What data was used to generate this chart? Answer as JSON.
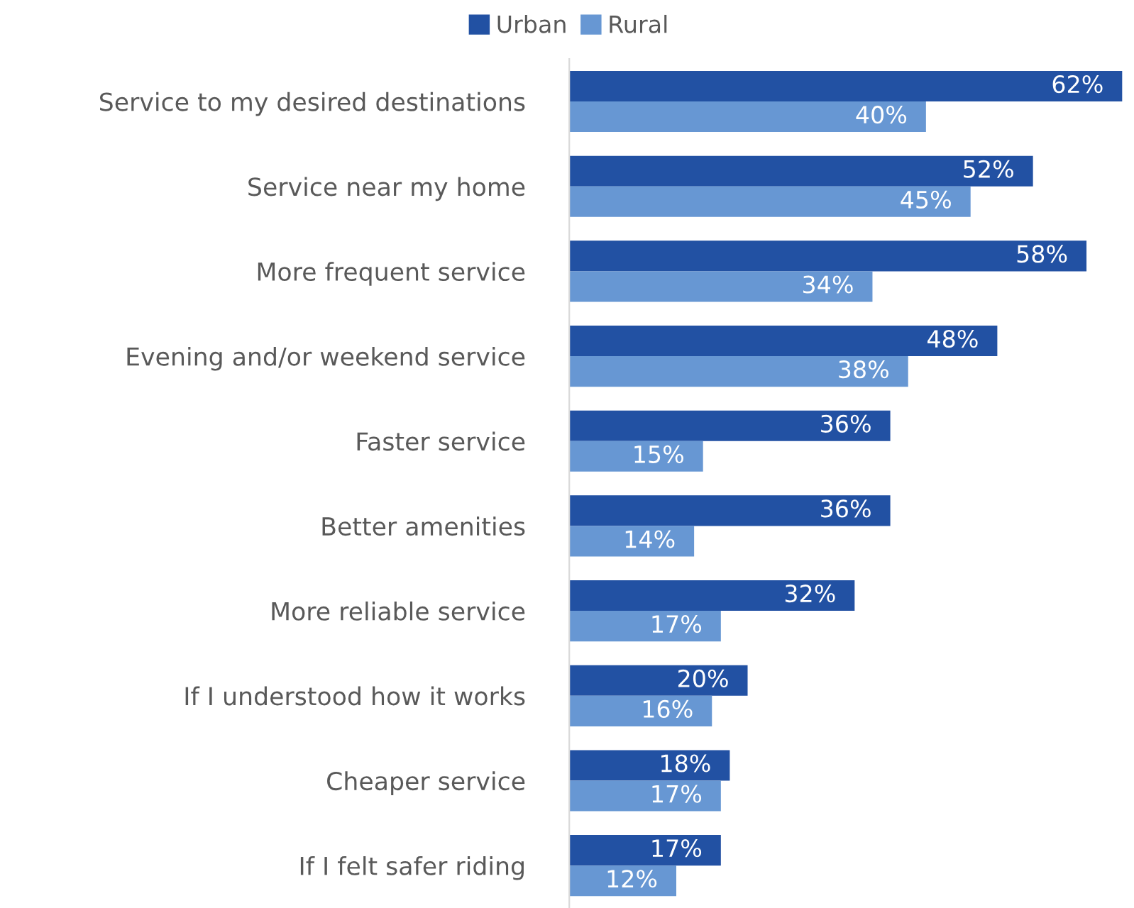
{
  "chart_data": {
    "type": "bar",
    "orientation": "horizontal",
    "categories": [
      "Service to my desired destinations",
      "Service near my home",
      "More frequent service",
      "Evening and/or weekend service",
      "Faster service",
      "Better amenities",
      "More reliable service",
      "If I understood how it works",
      "Cheaper service",
      "If I felt safer riding"
    ],
    "series": [
      {
        "name": "Urban",
        "color": "#2251a3",
        "values": [
          62,
          52,
          58,
          48,
          36,
          36,
          32,
          20,
          18,
          17
        ],
        "value_labels": [
          "62%",
          "52%",
          "58%",
          "48%",
          "36%",
          "36%",
          "32%",
          "20%",
          "18%",
          "17%"
        ]
      },
      {
        "name": "Rural",
        "color": "#6797d3",
        "values": [
          40,
          45,
          34,
          38,
          15,
          14,
          17,
          16,
          17,
          12
        ],
        "value_labels": [
          "40%",
          "45%",
          "34%",
          "38%",
          "15%",
          "14%",
          "17%",
          "16%",
          "17%",
          "12%"
        ]
      }
    ],
    "legend": "top",
    "grid": false
  }
}
